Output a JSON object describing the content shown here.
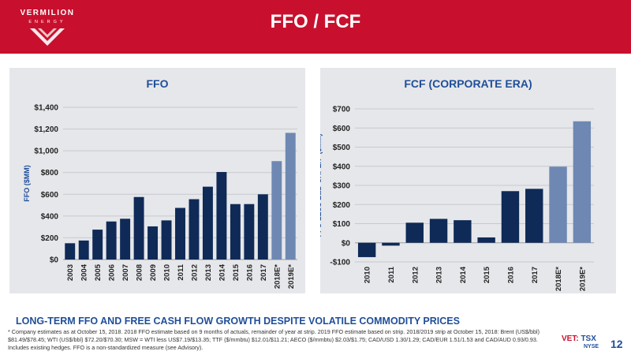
{
  "header": {
    "company_name": "VERMILION",
    "company_sub": "ENERGY",
    "title": "FFO / FCF",
    "brand_color": "#c8102e"
  },
  "chart_data": [
    {
      "type": "bar",
      "title": "FFO",
      "ylabel": "FFO ($MM)",
      "xlabel": "",
      "categories": [
        "2003",
        "2004",
        "2005",
        "2006",
        "2007",
        "2008",
        "2009",
        "2010",
        "2011",
        "2012",
        "2013",
        "2014",
        "2015",
        "2016",
        "2017",
        "2018E*",
        "2019E*"
      ],
      "values": [
        150,
        175,
        275,
        350,
        375,
        575,
        305,
        360,
        475,
        555,
        670,
        805,
        510,
        510,
        600,
        905,
        1165
      ],
      "estimate_categories": [
        "2018E*",
        "2019E*"
      ],
      "ylim": [
        0,
        1400
      ],
      "yticks": [
        0,
        200,
        400,
        600,
        800,
        1000,
        1200,
        1400
      ],
      "ytick_labels": [
        "$0",
        "$200",
        "$400",
        "$600",
        "$800",
        "$1,000",
        "$1,200",
        "$1,400"
      ],
      "grid": true,
      "colors": {
        "actual": "#0f2a57",
        "estimate": "#6e88b3"
      }
    },
    {
      "type": "bar",
      "title": "FCF (CORPORATE ERA)",
      "ylabel": "FFO LESS E&D CAPEX* ($MM)",
      "xlabel": "",
      "categories": [
        "2010",
        "2011",
        "2012",
        "2013",
        "2014",
        "2015",
        "2016",
        "2017",
        "2018E*",
        "2019E*"
      ],
      "values": [
        -75,
        -15,
        105,
        125,
        118,
        28,
        270,
        282,
        398,
        635
      ],
      "estimate_categories": [
        "2018E*",
        "2019E*"
      ],
      "ylim": [
        -100,
        700
      ],
      "yticks": [
        -100,
        0,
        100,
        200,
        300,
        400,
        500,
        600,
        700
      ],
      "ytick_labels": [
        "-$100",
        "$0",
        "$100",
        "$200",
        "$300",
        "$400",
        "$500",
        "$600",
        "$700"
      ],
      "grid": true,
      "colors": {
        "actual": "#0f2a57",
        "estimate": "#6e88b3"
      }
    }
  ],
  "subheading": "LONG-TERM FFO AND FREE CASH FLOW GROWTH DESPITE VOLATILE COMMODITY PRICES",
  "footnote": "* Company estimates as at October 15, 2018. 2018 FFO estimate based on 9 months of actuals, remainder of year at strip. 2019 FFO estimate based on strip. 2018/2019 strip at October 15, 2018: Brent (US$/bbl) $81.49/$78.45; WTI (US$/bbl) $72.20/$70.30; MSW = WTI less US$7.19/$13.35; TTF ($/mmbtu) $12.01/$11.21; AECO ($/mmbtu) $2.03/$1.75; CAD/USD 1.30/1.29; CAD/EUR 1.51/1.53 and CAD/AUD 0.93/0.93. Includes existing hedges. FFO is a non-standardized measure (see Advisory).",
  "exchange": {
    "vet": "VET:",
    "tsx": "TSX",
    "nyse": "NYSE"
  },
  "page_number": "12"
}
